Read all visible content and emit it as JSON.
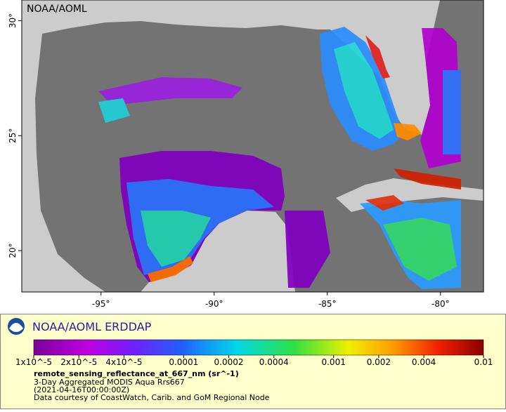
{
  "map": {
    "label": "NOAA/AOML",
    "xlim": [
      -98.5,
      -78.1
    ],
    "ylim": [
      18.2,
      30.9
    ],
    "lon_ticks": [
      {
        "value": -95,
        "label": "-95°"
      },
      {
        "value": -90,
        "label": "-90°"
      },
      {
        "value": -85,
        "label": "-85°"
      },
      {
        "value": -80,
        "label": "-80°"
      }
    ],
    "lat_ticks": [
      {
        "value": 30,
        "label": "30°"
      },
      {
        "value": 25,
        "label": "25°"
      },
      {
        "value": 20,
        "label": "20°"
      }
    ]
  },
  "legend": {
    "title": "NOAA/AOML ERDDAP",
    "colorbar": {
      "scale": "log",
      "lim": [
        1e-05,
        0.01
      ],
      "ticks": [
        {
          "value": 1e-05,
          "label": "1x10^-5"
        },
        {
          "value": 2e-05,
          "label": "2x10^-5"
        },
        {
          "value": 4e-05,
          "label": "4x10^-5"
        },
        {
          "value": 0.0001,
          "label": "0.0001"
        },
        {
          "value": 0.0002,
          "label": "0.0002"
        },
        {
          "value": 0.0004,
          "label": "0.0004"
        },
        {
          "value": 0.001,
          "label": "0.001"
        },
        {
          "value": 0.002,
          "label": "0.002"
        },
        {
          "value": 0.004,
          "label": "0.004"
        },
        {
          "value": 0.01,
          "label": "0.01"
        }
      ]
    },
    "variable": "remote_sensing_reflectance_at_667_nm (sr^-1)",
    "lines": [
      "3-Day Aggregated MODIS Aqua Rrs667",
      "(2021-04-16T00:00:00Z)",
      "Data courtesy of CoastWatch, Carib. and GoM Regional Node"
    ]
  }
}
